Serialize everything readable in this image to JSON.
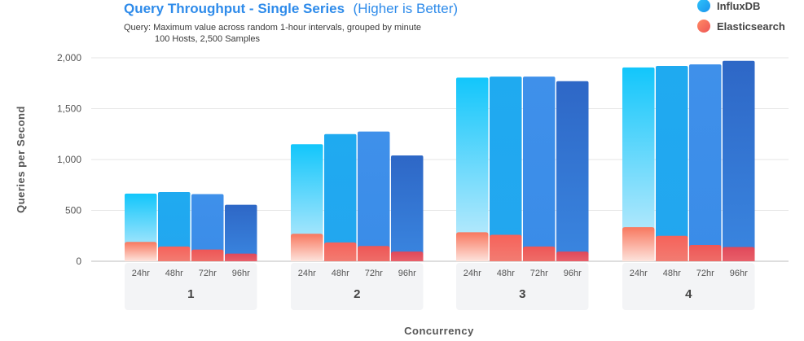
{
  "chart_data": {
    "type": "bar",
    "title": "Query Throughput - Single Series",
    "subtitle": "(Higher is Better)",
    "query_line1": "Query: Maximum value across random 1-hour intervals, grouped by minute",
    "query_line2": "100 Hosts, 2,500 Samples",
    "xlabel": "Concurrency",
    "ylabel": "Queries per Second",
    "ylim": [
      0,
      2000
    ],
    "yticks": [
      0,
      500,
      1000,
      1500,
      2000
    ],
    "ytick_labels": [
      "0",
      "500",
      "1,000",
      "1,500",
      "2,000"
    ],
    "groups": [
      "1",
      "2",
      "3",
      "4"
    ],
    "categories": [
      "24hr",
      "48hr",
      "72hr",
      "96hr"
    ],
    "series": [
      {
        "name": "InfluxDB",
        "color": "#1ea7f0",
        "values": [
          [
            665,
            680,
            660,
            555
          ],
          [
            1150,
            1250,
            1275,
            1040
          ],
          [
            1805,
            1815,
            1815,
            1770
          ],
          [
            1905,
            1920,
            1935,
            1970
          ]
        ]
      },
      {
        "name": "Elasticsearch",
        "color": "#f0605a",
        "values": [
          [
            190,
            145,
            115,
            75
          ],
          [
            270,
            185,
            150,
            95
          ],
          [
            285,
            260,
            145,
            95
          ],
          [
            335,
            250,
            160,
            140
          ]
        ]
      }
    ],
    "bar_colors": [
      "#16c4f9",
      "#1faaf0",
      "#3c8ee8",
      "#2f6ecc"
    ],
    "legend_position": "top-right",
    "grid": true
  }
}
